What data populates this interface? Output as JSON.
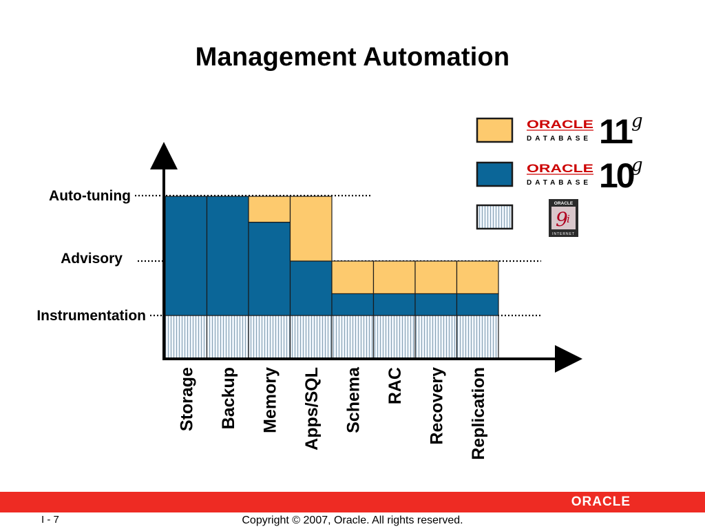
{
  "slide": {
    "title": "Management Automation",
    "slide_number": "I - 7",
    "copyright": "Copyright © 2007, Oracle.  All rights reserved.",
    "footer_logo": "ORACLE"
  },
  "levels": [
    {
      "label": "Auto-tuning"
    },
    {
      "label": "Advisory"
    },
    {
      "label": "Instrumentation"
    }
  ],
  "legend": [
    {
      "key": "11g",
      "swatch": "#fdca6e",
      "logo_word": "ORACLE",
      "logo_sub": "DATABASE",
      "version": "11",
      "suffix": "g"
    },
    {
      "key": "10g",
      "swatch": "#0b6698",
      "logo_word": "ORACLE",
      "logo_sub": "DATABASE",
      "version": "10",
      "suffix": "g"
    },
    {
      "key": "9i",
      "swatch": "stripes",
      "logo_word": "ORACLE",
      "logo_sub": "INTERNET",
      "version": "9",
      "suffix": "i"
    }
  ],
  "colors": {
    "yellow": "#fdca6e",
    "blue": "#0b6698",
    "stripe_bg": "#eef4fb",
    "stripe_line": "#7f9cb0",
    "footer_red": "#ee2b23"
  },
  "chart_data": {
    "type": "bar",
    "level_scale": [
      "Instrumentation",
      "Advisory",
      "Auto-tuning"
    ],
    "categories": [
      "Storage",
      "Backup",
      "Memory",
      "Apps/SQL",
      "Schema",
      "RAC",
      "Recovery",
      "Replication"
    ],
    "stack_order": [
      "9i",
      "10g",
      "11g"
    ],
    "columns": [
      {
        "name": "Storage",
        "segments": [
          {
            "release": "9i",
            "top": 1.0
          },
          {
            "release": "10g",
            "top": 3.0
          }
        ]
      },
      {
        "name": "Backup",
        "segments": [
          {
            "release": "9i",
            "top": 1.0
          },
          {
            "release": "10g",
            "top": 3.0
          }
        ]
      },
      {
        "name": "Memory",
        "segments": [
          {
            "release": "9i",
            "top": 1.0
          },
          {
            "release": "10g",
            "top": 2.6
          },
          {
            "release": "11g",
            "top": 3.0
          }
        ]
      },
      {
        "name": "Apps/SQL",
        "segments": [
          {
            "release": "9i",
            "top": 1.0
          },
          {
            "release": "10g",
            "top": 2.0
          },
          {
            "release": "11g",
            "top": 3.0
          }
        ]
      },
      {
        "name": "Schema",
        "segments": [
          {
            "release": "9i",
            "top": 1.0
          },
          {
            "release": "10g",
            "top": 1.4
          },
          {
            "release": "11g",
            "top": 2.0
          }
        ]
      },
      {
        "name": "RAC",
        "segments": [
          {
            "release": "9i",
            "top": 1.0
          },
          {
            "release": "10g",
            "top": 1.4
          },
          {
            "release": "11g",
            "top": 2.0
          }
        ]
      },
      {
        "name": "Recovery",
        "segments": [
          {
            "release": "9i",
            "top": 1.0
          },
          {
            "release": "10g",
            "top": 1.4
          },
          {
            "release": "11g",
            "top": 2.0
          }
        ]
      },
      {
        "name": "Replication",
        "segments": [
          {
            "release": "9i",
            "top": 1.0
          },
          {
            "release": "10g",
            "top": 1.4
          },
          {
            "release": "11g",
            "top": 2.0
          }
        ]
      }
    ]
  }
}
